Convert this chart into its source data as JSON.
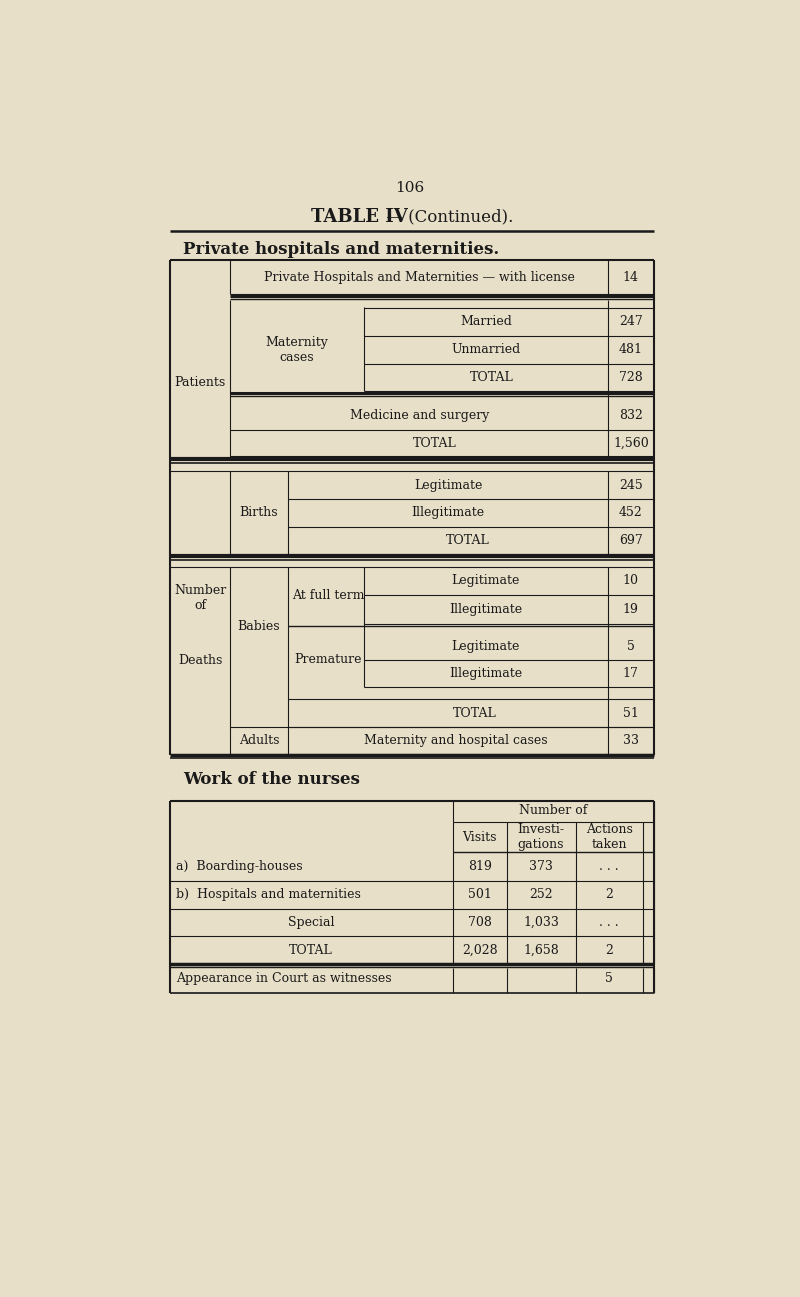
{
  "page_number": "106",
  "bg_color": "#e8dfc8",
  "text_color": "#1a1a1a",
  "license_label": "Private Hospitals and Maternities — with license",
  "license_value": "14",
  "patients_label": "Patients",
  "maternity_cases_label": "Maternity\ncases",
  "married_label": "Married",
  "married_value": "247",
  "unmarried_label": "Unmarried",
  "unmarried_value": "481",
  "maternity_total_label": "TOTAL",
  "maternity_total_value": "728",
  "med_surgery_label": "Medicine and surgery",
  "med_surgery_value": "832",
  "patients_total_label": "TOTAL",
  "patients_total_value": "1,560",
  "number_of_label": "Number\nof",
  "births_label": "Births",
  "legitimate_births_label": "Legitimate",
  "legitimate_births_value": "245",
  "illegitimate_births_label": "Illegitimate",
  "illegitimate_births_value": "452",
  "births_total_label": "TOTAL",
  "births_total_value": "697",
  "deaths_label": "Deaths",
  "babies_label": "Babies",
  "at_full_term_label": "At full term",
  "ft_legitimate_label": "Legitimate",
  "ft_legitimate_value": "10",
  "ft_illegitimate_label": "Illegitimate",
  "ft_illegitimate_value": "19",
  "premature_label": "Premature",
  "pm_legitimate_label": "Legitimate",
  "pm_legitimate_value": "5",
  "pm_illegitimate_label": "Illegitimate",
  "pm_illegitimate_value": "17",
  "babies_total_label": "TOTAL",
  "babies_total_value": "51",
  "adults_label": "Adults",
  "adults_desc": "Maternity and hospital cases",
  "adults_value": "33",
  "work_section_title": "Work of the nurses",
  "number_of_header": "Number of",
  "visits_header": "Visits",
  "investigations_header": "Investi-\ngations",
  "actions_header": "Actions\ntaken",
  "row_a_label": "a)  Boarding-houses",
  "row_a_visits": "819",
  "row_a_invest": "373",
  "row_a_actions": ". . .",
  "row_b_label": "b)  Hospitals and maternities",
  "row_b_visits": "501",
  "row_b_invest": "252",
  "row_b_actions": "2",
  "row_special_label": "Special",
  "row_special_visits": "708",
  "row_special_invest": "1,033",
  "row_special_actions": ". . .",
  "row_total_label": "TOTAL",
  "row_total_visits": "2,028",
  "row_total_invest": "1,658",
  "row_total_actions": "2",
  "appearance_label": "Appearance in Court as witnesses",
  "appearance_value": "5"
}
